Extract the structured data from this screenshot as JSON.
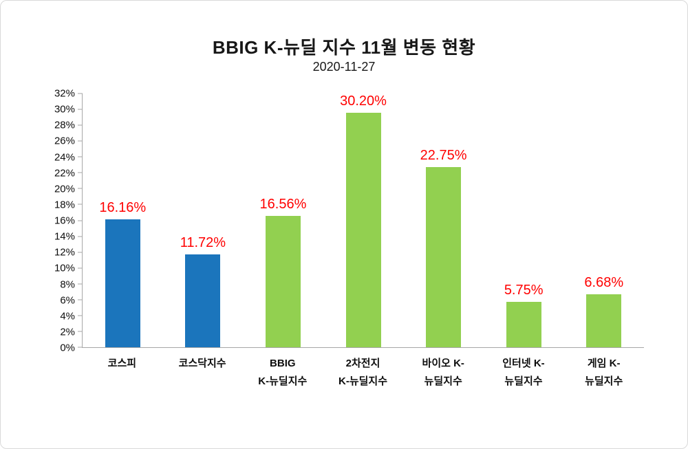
{
  "page": {
    "background_color": "#FFFFFF",
    "frame_border_color": "#D9D9D9"
  },
  "chart_data": {
    "type": "bar",
    "title": "BBIG K-뉴딜 지수 11월 변동 현황",
    "subtitle": "2020-11-27",
    "categories": [
      "코스피",
      "코스닥지수",
      "BBIG K-뉴딜지수",
      "2차전지 K-뉴딜지수",
      "바이오 K-뉴딜지수",
      "인터넷 K-뉴딜지수",
      "게임 K-뉴딜지수"
    ],
    "category_lines": [
      [
        "코스피"
      ],
      [
        "코스닥지수"
      ],
      [
        "BBIG",
        "K-뉴딜지수"
      ],
      [
        "2차전지",
        "K-뉴딜지수"
      ],
      [
        "바이오 K-",
        "뉴딜지수"
      ],
      [
        "인터넷 K-",
        "뉴딜지수"
      ],
      [
        "게임 K-",
        "뉴딜지수"
      ]
    ],
    "values": [
      16.16,
      11.72,
      16.56,
      30.2,
      22.75,
      5.75,
      6.68
    ],
    "value_labels": [
      "16.16%",
      "11.72%",
      "16.56%",
      "30.20%",
      "22.75%",
      "5.75%",
      "6.68%"
    ],
    "bar_colors": [
      "#1B75BC",
      "#1B75BC",
      "#92D050",
      "#92D050",
      "#92D050",
      "#92D050",
      "#92D050"
    ],
    "value_label_color": "#FF0000",
    "xlabel": "",
    "ylabel": "",
    "ylim": [
      0,
      32
    ],
    "ytick_step": 2,
    "ytick_suffix": "%",
    "grid": false,
    "legend": false,
    "axis_line_color": "#A6A6A6"
  }
}
